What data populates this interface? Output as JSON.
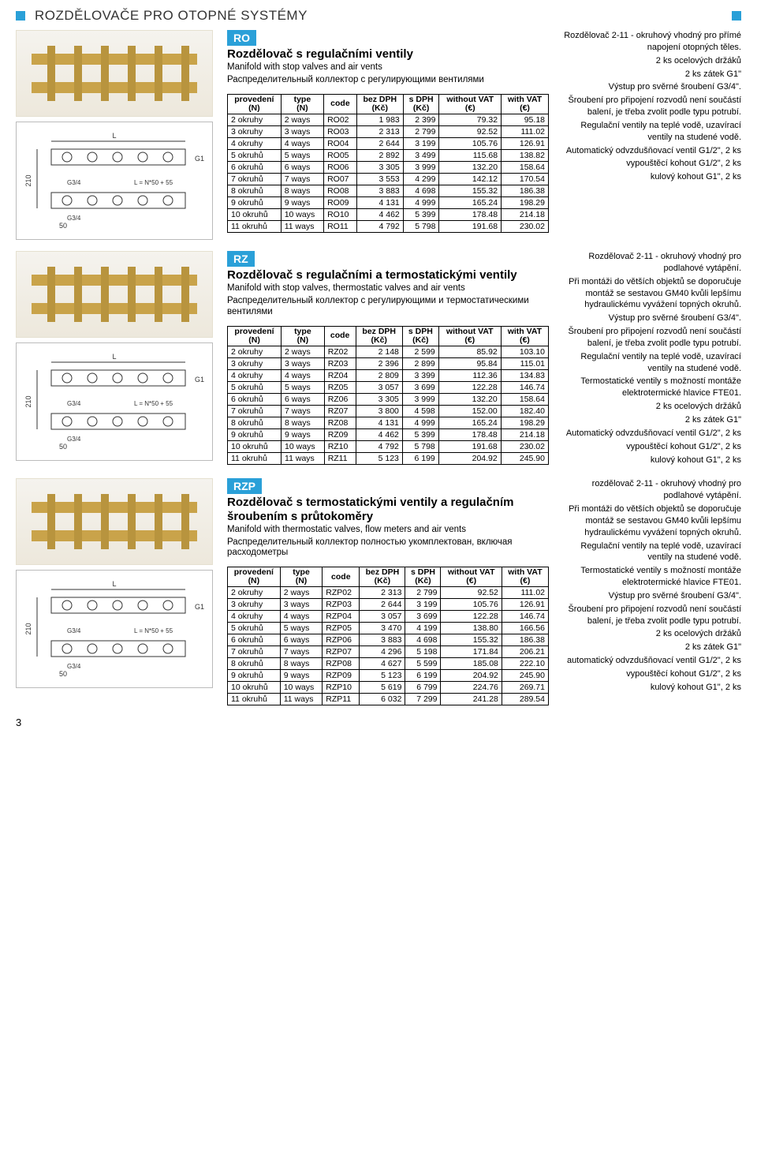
{
  "page_title": "ROZDĚLOVAČE PRO OTOPNÉ SYSTÉMY",
  "page_number": "3",
  "headers": {
    "provedeni": "provedení (N)",
    "type": "type (N)",
    "code": "code",
    "bezDPH": "bez DPH (Kč)",
    "sDPH": "s DPH (Kč)",
    "withoutVAT": "without VAT (€)",
    "withVAT": "with VAT (€)"
  },
  "diagram_labels": {
    "L": "L",
    "G1": "G1",
    "G34": "G3/4",
    "h": "210",
    "formula": "L = N*50 + 55",
    "w50": "50"
  },
  "products": [
    {
      "code": "RO",
      "title": "Rozdělovač s regulačními ventily",
      "sub_en": "Manifold with stop valves and air vents",
      "sub_ru": "Распределительный коллектор с регулирующими вентилями",
      "notes": [
        "Rozdělovač 2-11 - okruhový vhodný pro přímé napojení otopných těles.",
        "2 ks ocelových držáků",
        "2 ks zátek G1\"",
        "Výstup pro svěrné šroubení G3/4\".",
        "Šroubení pro připojení rozvodů není součástí balení, je třeba zvolit podle typu potrubí.",
        "Regulační ventily na teplé vodě, uzavírací ventily na studené vodě.",
        "Automatický odvzdušňovací ventil G1/2\", 2 ks",
        "vypouštěcí kohout G1/2\", 2 ks",
        "kulový kohout G1\", 2 ks"
      ],
      "rows": [
        [
          "2 okruhy",
          "2 ways",
          "RO02",
          "1 983",
          "2 399",
          "79.32",
          "95.18"
        ],
        [
          "3 okruhy",
          "3 ways",
          "RO03",
          "2 313",
          "2 799",
          "92.52",
          "111.02"
        ],
        [
          "4 okruhy",
          "4 ways",
          "RO04",
          "2 644",
          "3 199",
          "105.76",
          "126.91"
        ],
        [
          "5 okruhů",
          "5 ways",
          "RO05",
          "2 892",
          "3 499",
          "115.68",
          "138.82"
        ],
        [
          "6 okruhů",
          "6 ways",
          "RO06",
          "3 305",
          "3 999",
          "132.20",
          "158.64"
        ],
        [
          "7 okruhů",
          "7 ways",
          "RO07",
          "3 553",
          "4 299",
          "142.12",
          "170.54"
        ],
        [
          "8 okruhů",
          "8 ways",
          "RO08",
          "3 883",
          "4 698",
          "155.32",
          "186.38"
        ],
        [
          "9 okruhů",
          "9 ways",
          "RO09",
          "4 131",
          "4 999",
          "165.24",
          "198.29"
        ],
        [
          "10 okruhů",
          "10 ways",
          "RO10",
          "4 462",
          "5 399",
          "178.48",
          "214.18"
        ],
        [
          "11 okruhů",
          "11 ways",
          "RO11",
          "4 792",
          "5 798",
          "191.68",
          "230.02"
        ]
      ]
    },
    {
      "code": "RZ",
      "title": "Rozdělovač s regulačními a termostatickými ventily",
      "sub_en": "Manifold with stop valves, thermostatic valves and air vents",
      "sub_ru": "Распределительный коллектор с регулирующими и термостатическими вентилями",
      "notes": [
        "Rozdělovač 2-11 - okruhový vhodný pro podlahové vytápění.",
        "Při montáži do větších objektů se doporučuje montáž se sestavou GM40 kvůli lepšímu hydraulickému vyvážení topných okruhů.",
        "Výstup pro svěrné šroubení G3/4\".",
        "Šroubení pro připojení rozvodů není součástí balení, je třeba zvolit podle typu potrubí.",
        "Regulační ventily na teplé vodě, uzavírací ventily na studené vodě.",
        "Termostatické ventily s možností montáže elektrotermické hlavice FTE01.",
        "2 ks ocelových držáků",
        "2 ks zátek G1\"",
        "Automatický odvzdušňovací ventil G1/2\", 2 ks",
        "vypouštěcí kohout G1/2\", 2 ks",
        "kulový kohout G1\", 2 ks"
      ],
      "rows": [
        [
          "2 okruhy",
          "2 ways",
          "RZ02",
          "2 148",
          "2 599",
          "85.92",
          "103.10"
        ],
        [
          "3 okruhy",
          "3 ways",
          "RZ03",
          "2 396",
          "2 899",
          "95.84",
          "115.01"
        ],
        [
          "4 okruhy",
          "4 ways",
          "RZ04",
          "2 809",
          "3 399",
          "112.36",
          "134.83"
        ],
        [
          "5 okruhů",
          "5 ways",
          "RZ05",
          "3 057",
          "3 699",
          "122.28",
          "146.74"
        ],
        [
          "6 okruhů",
          "6 ways",
          "RZ06",
          "3 305",
          "3 999",
          "132.20",
          "158.64"
        ],
        [
          "7 okruhů",
          "7 ways",
          "RZ07",
          "3 800",
          "4 598",
          "152.00",
          "182.40"
        ],
        [
          "8 okruhů",
          "8 ways",
          "RZ08",
          "4 131",
          "4 999",
          "165.24",
          "198.29"
        ],
        [
          "9 okruhů",
          "9 ways",
          "RZ09",
          "4 462",
          "5 399",
          "178.48",
          "214.18"
        ],
        [
          "10 okruhů",
          "10 ways",
          "RZ10",
          "4 792",
          "5 798",
          "191.68",
          "230.02"
        ],
        [
          "11 okruhů",
          "11 ways",
          "RZ11",
          "5 123",
          "6 199",
          "204.92",
          "245.90"
        ]
      ]
    },
    {
      "code": "RZP",
      "title": "Rozdělovač s termostatickými ventily a regulačním šroubením s průtokoměry",
      "sub_en": "Manifold with thermostatic valves, flow meters and air vents",
      "sub_ru": "Распределительный коллектор полностью укомплектован, включая расходометры",
      "notes": [
        "rozdělovač 2-11 - okruhový vhodný pro podlahové vytápění.",
        "Při montáži do větších objektů se doporučuje montáž se sestavou GM40 kvůli lepšímu hydraulickému vyvážení topných okruhů.",
        "Regulační ventily na teplé vodě, uzavírací ventily na studené vodě.",
        "Termostatické ventily s možností montáže elektrotermické hlavice FTE01.",
        "Výstup pro svěrné šroubení G3/4\".",
        "Šroubení pro připojení rozvodů není součástí balení, je třeba zvolit podle typu potrubí.",
        "2 ks ocelových držáků",
        "2 ks zátek G1\"",
        "automatický odvzdušňovací ventil G1/2\", 2 ks",
        "vypouštěcí kohout G1/2\", 2 ks",
        "kulový kohout G1\", 2 ks"
      ],
      "rows": [
        [
          "2 okruhy",
          "2 ways",
          "RZP02",
          "2 313",
          "2 799",
          "92.52",
          "111.02"
        ],
        [
          "3 okruhy",
          "3 ways",
          "RZP03",
          "2 644",
          "3 199",
          "105.76",
          "126.91"
        ],
        [
          "4 okruhy",
          "4 ways",
          "RZP04",
          "3 057",
          "3 699",
          "122.28",
          "146.74"
        ],
        [
          "5 okruhů",
          "5 ways",
          "RZP05",
          "3 470",
          "4 199",
          "138.80",
          "166.56"
        ],
        [
          "6 okruhů",
          "6 ways",
          "RZP06",
          "3 883",
          "4 698",
          "155.32",
          "186.38"
        ],
        [
          "7 okruhů",
          "7 ways",
          "RZP07",
          "4 296",
          "5 198",
          "171.84",
          "206.21"
        ],
        [
          "8 okruhů",
          "8 ways",
          "RZP08",
          "4 627",
          "5 599",
          "185.08",
          "222.10"
        ],
        [
          "9 okruhů",
          "9 ways",
          "RZP09",
          "5 123",
          "6 199",
          "204.92",
          "245.90"
        ],
        [
          "10 okruhů",
          "10 ways",
          "RZP10",
          "5 619",
          "6 799",
          "224.76",
          "269.71"
        ],
        [
          "11 okruhů",
          "11 ways",
          "RZP11",
          "6 032",
          "7 299",
          "241.28",
          "289.54"
        ]
      ]
    }
  ]
}
